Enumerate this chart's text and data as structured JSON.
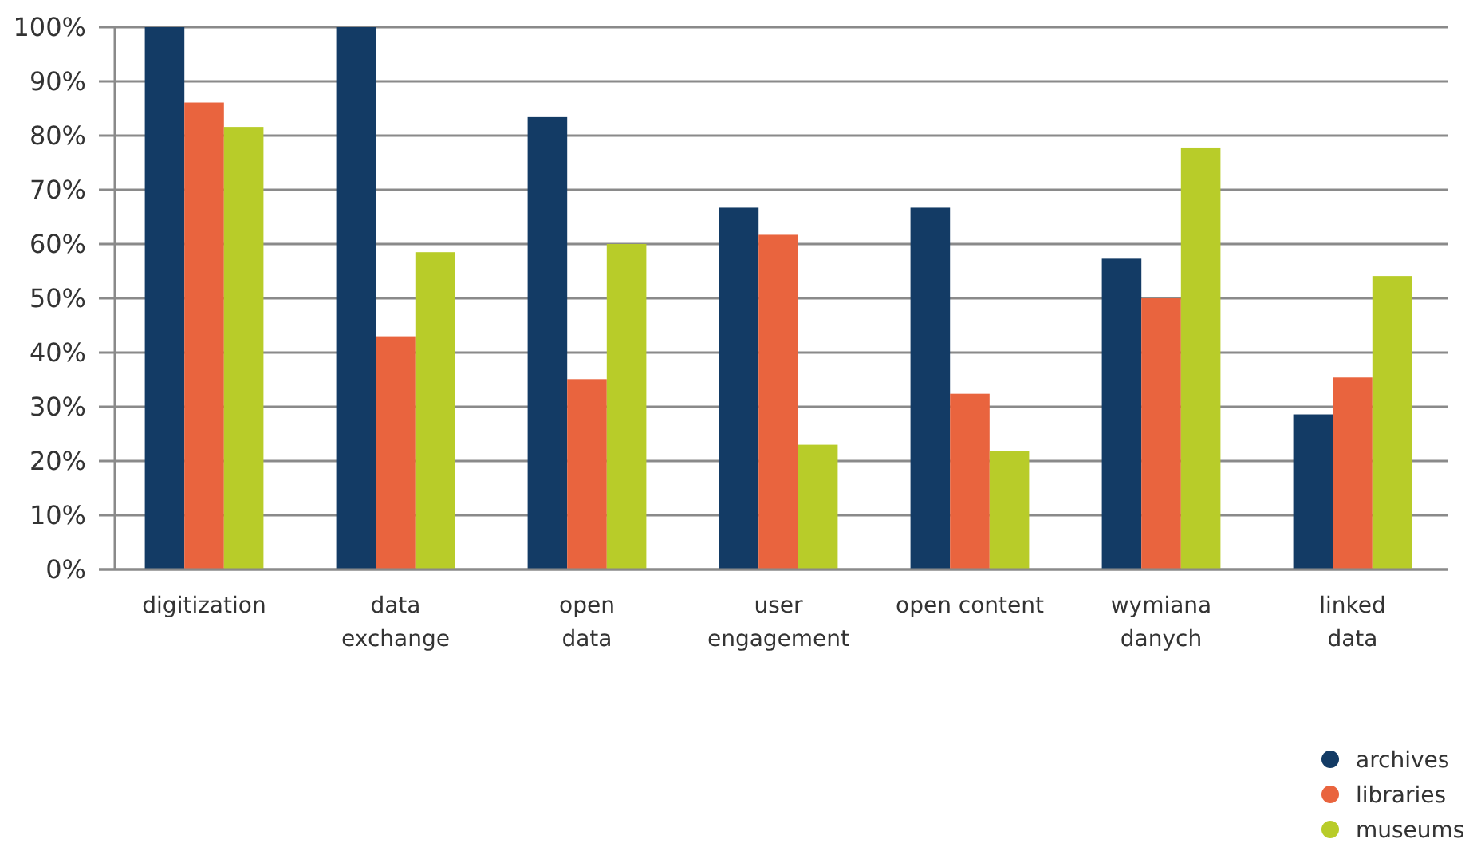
{
  "chart_data": {
    "type": "bar",
    "categories": [
      "digitization",
      "data\nexchange",
      "open\ndata",
      "user\nengagement",
      "open content",
      "wymiana\ndanych",
      "linked\ndata"
    ],
    "series": [
      {
        "name": "archives",
        "color": "#133b65",
        "values": [
          100,
          100,
          83.4,
          66.7,
          66.7,
          57.3,
          28.6
        ]
      },
      {
        "name": "libraries",
        "color": "#e9643e",
        "values": [
          86.1,
          43.0,
          35.1,
          61.7,
          32.4,
          50.0,
          35.4
        ]
      },
      {
        "name": "museums",
        "color": "#b8cc29",
        "values": [
          81.6,
          58.5,
          60.0,
          23.0,
          21.9,
          77.8,
          54.1
        ]
      }
    ],
    "ylim": [
      0,
      100
    ],
    "yticks": [
      {
        "value": 0,
        "label": "0%"
      },
      {
        "value": 10,
        "label": "10%"
      },
      {
        "value": 20,
        "label": "20%"
      },
      {
        "value": 30,
        "label": "30%"
      },
      {
        "value": 40,
        "label": "40%"
      },
      {
        "value": 50,
        "label": "50%"
      },
      {
        "value": 60,
        "label": "60%"
      },
      {
        "value": 70,
        "label": "70%"
      },
      {
        "value": 80,
        "label": "80%"
      },
      {
        "value": 90,
        "label": "90%"
      },
      {
        "value": 100,
        "label": "100%"
      }
    ],
    "grid": "y",
    "legend": "bottom right"
  }
}
